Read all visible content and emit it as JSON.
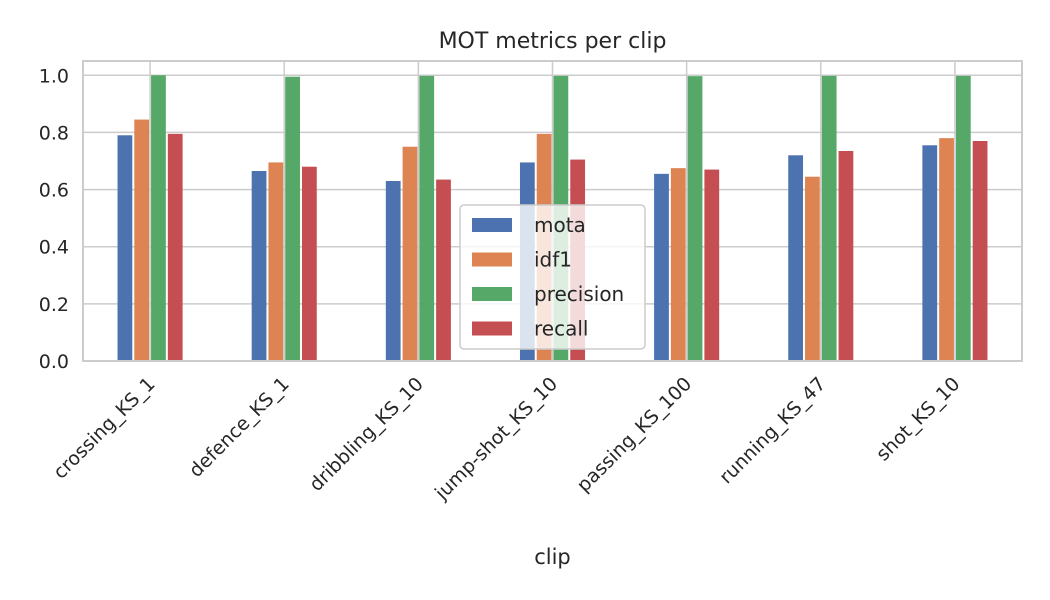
{
  "chart_data": {
    "type": "bar",
    "title": "MOT metrics per clip",
    "xlabel": "clip",
    "ylabel": "",
    "ylim": [
      0,
      1.05
    ],
    "yticks": [
      "0.0",
      "0.2",
      "0.4",
      "0.6",
      "0.8",
      "1.0"
    ],
    "grid": true,
    "legend_position": "lower-center",
    "categories": [
      "crossing_KS_1",
      "defence_KS_1",
      "dribbling_KS_10",
      "jump-shot_KS_10",
      "passing_KS_100",
      "running_KS_47",
      "shot_KS_10"
    ],
    "series": [
      {
        "name": "mota",
        "color": "#4c72b0",
        "values": [
          0.79,
          0.665,
          0.63,
          0.695,
          0.655,
          0.72,
          0.755
        ]
      },
      {
        "name": "idf1",
        "color": "#dd8452",
        "values": [
          0.845,
          0.695,
          0.75,
          0.795,
          0.675,
          0.645,
          0.78
        ]
      },
      {
        "name": "precision",
        "color": "#55a868",
        "values": [
          1.0,
          0.995,
          0.998,
          0.998,
          0.997,
          0.998,
          0.998
        ]
      },
      {
        "name": "recall",
        "color": "#c44e52",
        "values": [
          0.795,
          0.68,
          0.635,
          0.705,
          0.67,
          0.735,
          0.77
        ]
      }
    ]
  }
}
